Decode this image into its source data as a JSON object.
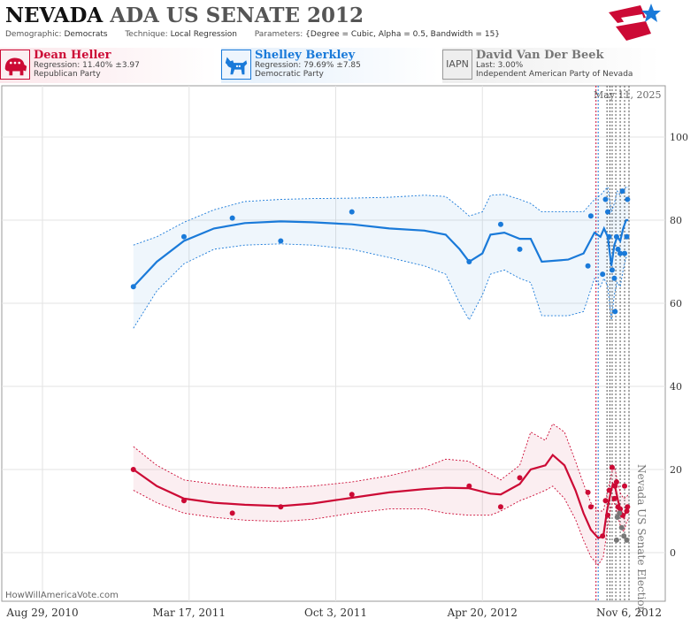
{
  "header": {
    "title_state": "NEVADA",
    "title_rest": "ADA US SENATE 2012",
    "demographic_label": "Demographic:",
    "demographic_value": "Democrats",
    "technique_label": "Technique:",
    "technique_value": "Local Regression",
    "parameters_label": "Parameters:",
    "parameters_value": "{Degree = Cubic, Alpha = 0.5, Bandwidth = 15}"
  },
  "candidates": [
    {
      "name": "Dean Heller",
      "line2": "Regression: 11.40% ±3.97",
      "line3": "Republican Party",
      "color": "#cc0a35",
      "icon": "elephant-icon"
    },
    {
      "name": "Shelley Berkley",
      "line2": "Regression: 79.69% ±7.85",
      "line3": "Democratic Party",
      "color": "#1a7ad9",
      "icon": "donkey-icon"
    },
    {
      "name": "David Van Der Beek",
      "line2": "Last: 3.00%",
      "line3": "Independent American Party  of Nevada",
      "color": "#777777",
      "icon_text": "IAPN"
    }
  ],
  "date_stamp": "May 11, 2025",
  "footer_credit": "HowWillAmericaVote.com",
  "event_label": "Nevada US Senate Election",
  "chart_data": {
    "type": "line",
    "x_ticks": [
      "Aug 29, 2010",
      "Mar 17, 2011",
      "Oct 3, 2011",
      "Apr 20, 2012",
      "Nov 6, 2012"
    ],
    "y_ticks": [
      0,
      20,
      40,
      60,
      80,
      100
    ],
    "ylim": [
      -10,
      112
    ],
    "xlim": [
      "2010-08-29",
      "2012-11-18"
    ],
    "grid": true,
    "event_lines": [
      "2012-09-22",
      "2012-09-25",
      "2012-10-07",
      "2012-10-11",
      "2012-10-14",
      "2012-10-19",
      "2012-10-25",
      "2012-10-31",
      "2012-11-06"
    ],
    "series": [
      {
        "name": "Shelley Berkley",
        "color": "#1a7ad9",
        "points": [
          [
            "2010-12-31",
            64
          ],
          [
            "2011-03-10",
            76
          ],
          [
            "2011-05-15",
            80.5
          ],
          [
            "2011-07-20",
            75
          ],
          [
            "2011-10-25",
            82
          ],
          [
            "2012-04-02",
            70
          ],
          [
            "2012-05-15",
            79
          ],
          [
            "2012-06-10",
            73
          ],
          [
            "2012-09-11",
            69
          ],
          [
            "2012-09-15",
            81
          ],
          [
            "2012-10-01",
            67
          ],
          [
            "2012-10-05",
            85
          ],
          [
            "2012-10-08",
            82
          ],
          [
            "2012-10-10",
            76
          ],
          [
            "2012-10-14",
            68
          ],
          [
            "2012-10-17",
            66
          ],
          [
            "2012-10-18",
            58
          ],
          [
            "2012-10-20",
            76
          ],
          [
            "2012-10-22",
            73
          ],
          [
            "2012-10-25",
            72
          ],
          [
            "2012-10-28",
            87
          ],
          [
            "2012-10-31",
            72
          ],
          [
            "2012-11-03",
            76
          ],
          [
            "2012-11-04",
            85
          ]
        ],
        "trend": [
          [
            "2010-12-31",
            64
          ],
          [
            "2011-02-01",
            70
          ],
          [
            "2011-03-10",
            75
          ],
          [
            "2011-04-20",
            78
          ],
          [
            "2011-06-01",
            79.3
          ],
          [
            "2011-07-20",
            79.7
          ],
          [
            "2011-09-01",
            79.5
          ],
          [
            "2011-10-25",
            79
          ],
          [
            "2011-12-15",
            78
          ],
          [
            "2012-02-01",
            77.5
          ],
          [
            "2012-03-01",
            76.5
          ],
          [
            "2012-03-20",
            73
          ],
          [
            "2012-04-02",
            70
          ],
          [
            "2012-04-20",
            72
          ],
          [
            "2012-05-01",
            76.5
          ],
          [
            "2012-05-20",
            77
          ],
          [
            "2012-06-10",
            75.5
          ],
          [
            "2012-06-25",
            75.5
          ],
          [
            "2012-07-10",
            70
          ],
          [
            "2012-08-15",
            70.5
          ],
          [
            "2012-09-05",
            72
          ],
          [
            "2012-09-20",
            77
          ],
          [
            "2012-09-28",
            76
          ],
          [
            "2012-10-03",
            78
          ],
          [
            "2012-10-08",
            76
          ],
          [
            "2012-10-13",
            69
          ],
          [
            "2012-10-17",
            74
          ],
          [
            "2012-10-21",
            76
          ],
          [
            "2012-10-25",
            75
          ],
          [
            "2012-10-29",
            78
          ],
          [
            "2012-11-02",
            80
          ],
          [
            "2012-11-05",
            80
          ]
        ],
        "upper": [
          [
            "2010-12-31",
            74
          ],
          [
            "2011-02-01",
            76
          ],
          [
            "2011-03-10",
            79.5
          ],
          [
            "2011-04-20",
            82.5
          ],
          [
            "2011-06-01",
            84.5
          ],
          [
            "2011-07-20",
            85
          ],
          [
            "2011-09-01",
            85.2
          ],
          [
            "2011-10-25",
            85.3
          ],
          [
            "2011-12-15",
            85.5
          ],
          [
            "2012-02-01",
            86
          ],
          [
            "2012-03-01",
            85.7
          ],
          [
            "2012-03-20",
            83
          ],
          [
            "2012-04-02",
            81
          ],
          [
            "2012-04-20",
            82
          ],
          [
            "2012-05-01",
            86
          ],
          [
            "2012-05-20",
            86.2
          ],
          [
            "2012-06-10",
            85
          ],
          [
            "2012-06-25",
            84
          ],
          [
            "2012-07-10",
            82
          ],
          [
            "2012-08-15",
            82
          ],
          [
            "2012-09-05",
            82
          ],
          [
            "2012-09-20",
            85
          ],
          [
            "2012-09-28",
            86
          ],
          [
            "2012-10-03",
            87
          ],
          [
            "2012-10-08",
            88
          ],
          [
            "2012-10-13",
            82
          ],
          [
            "2012-10-17",
            84
          ],
          [
            "2012-10-21",
            87
          ],
          [
            "2012-10-25",
            86
          ],
          [
            "2012-10-29",
            87
          ],
          [
            "2012-11-02",
            88
          ],
          [
            "2012-11-05",
            88
          ]
        ],
        "lower": [
          [
            "2010-12-31",
            54
          ],
          [
            "2011-02-01",
            63
          ],
          [
            "2011-03-10",
            69.5
          ],
          [
            "2011-04-20",
            73
          ],
          [
            "2011-06-01",
            74
          ],
          [
            "2011-07-20",
            74.3
          ],
          [
            "2011-09-01",
            74
          ],
          [
            "2011-10-25",
            73
          ],
          [
            "2011-12-15",
            71
          ],
          [
            "2012-02-01",
            69
          ],
          [
            "2012-03-01",
            67
          ],
          [
            "2012-03-20",
            60
          ],
          [
            "2012-04-02",
            56
          ],
          [
            "2012-04-20",
            62
          ],
          [
            "2012-05-01",
            67
          ],
          [
            "2012-05-20",
            68
          ],
          [
            "2012-06-10",
            66
          ],
          [
            "2012-06-25",
            65
          ],
          [
            "2012-07-10",
            57
          ],
          [
            "2012-08-15",
            57
          ],
          [
            "2012-09-05",
            58
          ],
          [
            "2012-09-20",
            66
          ],
          [
            "2012-09-28",
            64
          ],
          [
            "2012-10-03",
            66
          ],
          [
            "2012-10-08",
            64
          ],
          [
            "2012-10-13",
            56
          ],
          [
            "2012-10-17",
            62
          ],
          [
            "2012-10-21",
            65
          ],
          [
            "2012-10-25",
            64
          ],
          [
            "2012-10-29",
            68
          ],
          [
            "2012-11-02",
            71
          ],
          [
            "2012-11-05",
            71
          ]
        ]
      },
      {
        "name": "Dean Heller",
        "color": "#cc0a35",
        "points": [
          [
            "2010-12-31",
            20
          ],
          [
            "2011-03-10",
            12.5
          ],
          [
            "2011-05-15",
            9.5
          ],
          [
            "2011-07-20",
            11
          ],
          [
            "2011-10-25",
            14
          ],
          [
            "2012-04-02",
            16
          ],
          [
            "2012-05-15",
            11
          ],
          [
            "2012-06-10",
            18
          ],
          [
            "2012-09-11",
            14.5
          ],
          [
            "2012-09-15",
            11
          ],
          [
            "2012-10-01",
            4
          ],
          [
            "2012-10-05",
            12.5
          ],
          [
            "2012-10-08",
            9
          ],
          [
            "2012-10-10",
            15
          ],
          [
            "2012-10-14",
            20.5
          ],
          [
            "2012-10-17",
            13
          ],
          [
            "2012-10-18",
            16
          ],
          [
            "2012-10-20",
            17
          ],
          [
            "2012-10-22",
            11
          ],
          [
            "2012-10-25",
            10.5
          ],
          [
            "2012-10-28",
            9
          ],
          [
            "2012-10-31",
            16
          ],
          [
            "2012-11-03",
            10
          ],
          [
            "2012-11-04",
            11
          ]
        ],
        "trend": [
          [
            "2010-12-31",
            20
          ],
          [
            "2011-02-01",
            16
          ],
          [
            "2011-03-10",
            13
          ],
          [
            "2011-04-20",
            12
          ],
          [
            "2011-06-01",
            11.5
          ],
          [
            "2011-07-20",
            11.2
          ],
          [
            "2011-09-01",
            11.8
          ],
          [
            "2011-10-25",
            13.2
          ],
          [
            "2011-12-15",
            14.5
          ],
          [
            "2012-02-01",
            15.3
          ],
          [
            "2012-03-01",
            15.6
          ],
          [
            "2012-04-01",
            15.5
          ],
          [
            "2012-05-01",
            14.2
          ],
          [
            "2012-05-15",
            14
          ],
          [
            "2012-06-10",
            16.5
          ],
          [
            "2012-06-25",
            20
          ],
          [
            "2012-07-15",
            21
          ],
          [
            "2012-07-25",
            23.5
          ],
          [
            "2012-08-10",
            21
          ],
          [
            "2012-08-25",
            15
          ],
          [
            "2012-09-05",
            9.5
          ],
          [
            "2012-09-15",
            5.5
          ],
          [
            "2012-09-25",
            3.5
          ],
          [
            "2012-10-02",
            4
          ],
          [
            "2012-10-07",
            10
          ],
          [
            "2012-10-12",
            14.5
          ],
          [
            "2012-10-15",
            16.5
          ],
          [
            "2012-10-18",
            15.8
          ],
          [
            "2012-10-22",
            12.5
          ],
          [
            "2012-10-26",
            10
          ],
          [
            "2012-10-30",
            8.5
          ],
          [
            "2012-11-03",
            10.5
          ],
          [
            "2012-11-05",
            11
          ]
        ],
        "upper": [
          [
            "2010-12-31",
            25.5
          ],
          [
            "2011-02-01",
            21
          ],
          [
            "2011-03-10",
            17.5
          ],
          [
            "2011-04-20",
            16.5
          ],
          [
            "2011-06-01",
            15.8
          ],
          [
            "2011-07-20",
            15.5
          ],
          [
            "2011-09-01",
            16
          ],
          [
            "2011-10-25",
            17
          ],
          [
            "2011-12-15",
            18.5
          ],
          [
            "2012-02-01",
            20.5
          ],
          [
            "2012-03-01",
            22.5
          ],
          [
            "2012-04-01",
            22
          ],
          [
            "2012-05-01",
            19
          ],
          [
            "2012-05-15",
            17.5
          ],
          [
            "2012-06-10",
            21
          ],
          [
            "2012-06-25",
            29
          ],
          [
            "2012-07-15",
            27
          ],
          [
            "2012-07-25",
            31
          ],
          [
            "2012-08-10",
            29
          ],
          [
            "2012-08-25",
            22
          ],
          [
            "2012-09-05",
            16.5
          ],
          [
            "2012-09-15",
            12
          ],
          [
            "2012-09-25",
            10
          ],
          [
            "2012-10-02",
            10
          ],
          [
            "2012-10-07",
            14
          ],
          [
            "2012-10-12",
            18
          ],
          [
            "2012-10-15",
            20.5
          ],
          [
            "2012-10-18",
            20
          ],
          [
            "2012-10-22",
            16.5
          ],
          [
            "2012-10-26",
            14
          ],
          [
            "2012-10-30",
            13
          ],
          [
            "2012-11-03",
            13.5
          ],
          [
            "2012-11-05",
            14
          ]
        ],
        "lower": [
          [
            "2010-12-31",
            15
          ],
          [
            "2011-02-01",
            12
          ],
          [
            "2011-03-10",
            9.5
          ],
          [
            "2011-04-20",
            8.5
          ],
          [
            "2011-06-01",
            7.8
          ],
          [
            "2011-07-20",
            7.5
          ],
          [
            "2011-09-01",
            8
          ],
          [
            "2011-10-25",
            9.5
          ],
          [
            "2011-12-15",
            10.5
          ],
          [
            "2012-02-01",
            10.5
          ],
          [
            "2012-03-01",
            9.5
          ],
          [
            "2012-04-01",
            9
          ],
          [
            "2012-05-01",
            9
          ],
          [
            "2012-05-15",
            10
          ],
          [
            "2012-06-10",
            12.5
          ],
          [
            "2012-06-25",
            13.5
          ],
          [
            "2012-07-15",
            15
          ],
          [
            "2012-07-25",
            16
          ],
          [
            "2012-08-10",
            13
          ],
          [
            "2012-08-25",
            8
          ],
          [
            "2012-09-05",
            3
          ],
          [
            "2012-09-15",
            -1
          ],
          [
            "2012-09-25",
            -3
          ],
          [
            "2012-10-02",
            -1
          ],
          [
            "2012-10-07",
            5
          ],
          [
            "2012-10-12",
            10.5
          ],
          [
            "2012-10-15",
            12.5
          ],
          [
            "2012-10-18",
            11.5
          ],
          [
            "2012-10-22",
            8.5
          ],
          [
            "2012-10-26",
            6
          ],
          [
            "2012-10-30",
            5
          ],
          [
            "2012-11-03",
            7.5
          ],
          [
            "2012-11-05",
            8
          ]
        ]
      },
      {
        "name": "David Van Der Beek",
        "color": "#777777",
        "points": [
          [
            "2012-10-20",
            3
          ],
          [
            "2012-10-21",
            8.5
          ],
          [
            "2012-10-24",
            9.5
          ],
          [
            "2012-10-27",
            6
          ],
          [
            "2012-10-30",
            4
          ],
          [
            "2012-11-03",
            3
          ]
        ]
      }
    ]
  }
}
